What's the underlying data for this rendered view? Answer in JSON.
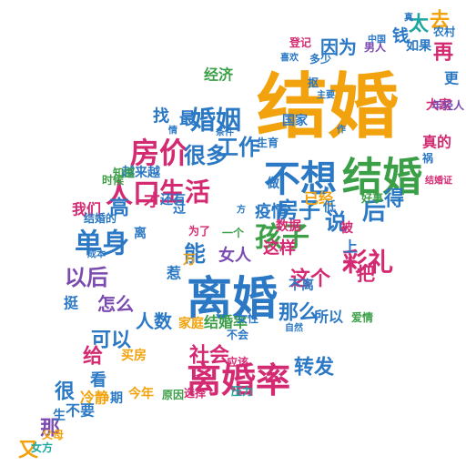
{
  "palette": {
    "orange": "#f2a20c",
    "blue": "#2b78c5",
    "green": "#3a9f46",
    "magenta": "#d42a72",
    "teal": "#1ea6a0",
    "purple": "#7b4bb0",
    "yellow": "#e3b51a",
    "background": "#ffffff"
  },
  "words": [
    {
      "t": "结婚",
      "c": "orange",
      "r": 0
    },
    {
      "t": "不想",
      "c": "blue",
      "r": 0
    },
    {
      "t": "结婚",
      "c": "green",
      "r": 0
    },
    {
      "t": "离婚",
      "c": "blue",
      "r": 0
    },
    {
      "t": "离婚率",
      "c": "magenta",
      "r": 0
    },
    {
      "t": "房价",
      "c": "magenta",
      "r": 0
    },
    {
      "t": "孩子",
      "c": "green",
      "r": 0
    },
    {
      "t": "婚姻",
      "c": "blue",
      "r": 0
    },
    {
      "t": "单身",
      "c": "blue",
      "r": 0
    },
    {
      "t": "人口",
      "c": "magenta",
      "r": 0
    },
    {
      "t": "彩礼",
      "c": "magenta",
      "r": 0
    },
    {
      "t": "生活",
      "c": "magenta",
      "r": 0
    },
    {
      "t": "工作",
      "c": "blue",
      "r": 0
    },
    {
      "t": "很多",
      "c": "blue",
      "r": 0
    },
    {
      "t": "房子",
      "c": "blue",
      "r": 0
    },
    {
      "t": "以后",
      "c": "purple",
      "r": 0
    },
    {
      "t": "可以",
      "c": "blue",
      "r": 0
    },
    {
      "t": "那么",
      "c": "blue",
      "r": 0
    },
    {
      "t": "这个",
      "c": "magenta",
      "r": 0
    },
    {
      "t": "社会",
      "c": "magenta",
      "r": 0
    },
    {
      "t": "转发",
      "c": "blue",
      "r": 0
    },
    {
      "t": "因为",
      "c": "blue",
      "r": 0
    },
    {
      "t": "说",
      "c": "blue",
      "r": 0
    },
    {
      "t": "后",
      "c": "blue",
      "r": 0
    },
    {
      "t": "再",
      "c": "magenta",
      "r": 0
    },
    {
      "t": "太",
      "c": "teal",
      "r": 0
    },
    {
      "t": "去",
      "c": "orange",
      "r": 0
    },
    {
      "t": "高",
      "c": "blue",
      "r": 0
    },
    {
      "t": "能",
      "c": "blue",
      "r": 0
    },
    {
      "t": "得",
      "c": "blue",
      "r": 0
    },
    {
      "t": "给",
      "c": "magenta",
      "r": 0
    },
    {
      "t": "那",
      "c": "purple",
      "r": 0
    },
    {
      "t": "很",
      "c": "blue",
      "r": 0
    },
    {
      "t": "把",
      "c": "magenta",
      "r": 0
    },
    {
      "t": "怎么",
      "c": "purple",
      "r": 0
    },
    {
      "t": "人数",
      "c": "blue",
      "r": 0
    },
    {
      "t": "疫情",
      "c": "blue",
      "r": 0
    },
    {
      "t": "女人",
      "c": "purple",
      "r": 0
    },
    {
      "t": "这样",
      "c": "magenta",
      "r": 0
    },
    {
      "t": "所以",
      "c": "blue",
      "r": 0
    },
    {
      "t": "结婚率",
      "c": "green",
      "r": 0
    },
    {
      "t": "看",
      "c": "blue",
      "r": 0
    },
    {
      "t": "冷静",
      "c": "orange",
      "r": 0
    },
    {
      "t": "期",
      "c": "blue",
      "r": 0
    },
    {
      "t": "今年",
      "c": "orange",
      "r": 0
    },
    {
      "t": "原因",
      "c": "green",
      "r": 0
    },
    {
      "t": "选择",
      "c": "magenta",
      "r": 0
    },
    {
      "t": "压力",
      "c": "teal",
      "r": 0
    },
    {
      "t": "不要",
      "c": "blue",
      "r": 0
    },
    {
      "t": "数据",
      "c": "magenta",
      "r": 0
    },
    {
      "t": "已经",
      "c": "orange",
      "r": 0
    },
    {
      "t": "好事",
      "c": "green",
      "r": 0
    },
    {
      "t": "登记",
      "c": "magenta",
      "r": 0
    },
    {
      "t": "男人",
      "c": "purple",
      "r": 0
    },
    {
      "t": "钱",
      "c": "blue",
      "r": 0
    },
    {
      "t": "如果",
      "c": "blue",
      "r": 0
    },
    {
      "t": "经济",
      "c": "green",
      "r": 0
    },
    {
      "t": "多少",
      "c": "blue",
      "r": 0
    },
    {
      "t": "更",
      "c": "blue",
      "r": 0
    },
    {
      "t": "大家",
      "c": "magenta",
      "r": 0
    },
    {
      "t": "真的",
      "c": "magenta",
      "r": 0
    },
    {
      "t": "国家",
      "c": "blue",
      "r": 0
    },
    {
      "t": "祸",
      "c": "blue",
      "r": 0
    },
    {
      "t": "找",
      "c": "blue",
      "r": 0
    },
    {
      "t": "最",
      "c": "blue",
      "r": 0
    },
    {
      "t": "越来越",
      "c": "blue",
      "r": 0
    },
    {
      "t": "还有",
      "c": "blue",
      "r": 0
    },
    {
      "t": "我们",
      "c": "magenta",
      "r": 0
    },
    {
      "t": "才",
      "c": "magenta",
      "r": 0
    },
    {
      "t": "过",
      "c": "blue",
      "r": 0
    },
    {
      "t": "离",
      "c": "blue",
      "r": 0
    },
    {
      "t": "万",
      "c": "orange",
      "r": 0
    },
    {
      "t": "买房",
      "c": "orange",
      "r": 0
    },
    {
      "t": "家庭",
      "c": "orange",
      "r": 0
    },
    {
      "t": "女性",
      "c": "blue",
      "r": 0
    },
    {
      "t": "应该",
      "c": "magenta",
      "r": 0
    },
    {
      "t": "不会",
      "c": "blue",
      "r": 0
    },
    {
      "t": "不离",
      "c": "blue",
      "r": 0
    },
    {
      "t": "上",
      "c": "blue",
      "r": 0
    },
    {
      "t": "大",
      "c": "magenta",
      "r": 0
    },
    {
      "t": "被",
      "c": "magenta",
      "r": 0
    },
    {
      "t": "低",
      "c": "blue",
      "r": 0
    },
    {
      "t": "做",
      "c": "blue",
      "r": 0
    },
    {
      "t": "生育",
      "c": "blue",
      "r": 0
    },
    {
      "t": "挺",
      "c": "blue",
      "r": 0
    },
    {
      "t": "生",
      "c": "blue",
      "r": 0
    },
    {
      "t": "又",
      "c": "orange",
      "r": 0
    },
    {
      "t": "知道",
      "c": "green",
      "r": 0
    },
    {
      "t": "时候",
      "c": "green",
      "r": 0
    },
    {
      "t": "结婚的",
      "c": "blue",
      "r": 0
    },
    {
      "t": "抠",
      "c": "blue",
      "r": 0
    },
    {
      "t": "为了",
      "c": "magenta",
      "r": 0
    },
    {
      "t": "惹",
      "c": "blue",
      "r": 0
    },
    {
      "t": "成本",
      "c": "blue",
      "r": 0
    },
    {
      "t": "父母",
      "c": "orange",
      "r": 0
    },
    {
      "t": "女方",
      "c": "teal",
      "r": 0
    },
    {
      "t": "喜欢",
      "c": "blue",
      "r": 0
    },
    {
      "t": "爱情",
      "c": "green",
      "r": 0
    },
    {
      "t": "自然",
      "c": "blue",
      "r": 0
    },
    {
      "t": "结婚证",
      "c": "magenta",
      "r": 0
    },
    {
      "t": "真",
      "c": "blue",
      "r": 0
    },
    {
      "t": "中国",
      "c": "blue",
      "r": 0
    },
    {
      "t": "主要",
      "c": "blue",
      "r": 0
    },
    {
      "t": "作",
      "c": "blue",
      "r": 0
    },
    {
      "t": "情",
      "c": "blue",
      "r": 0
    },
    {
      "t": "农村",
      "c": "blue",
      "r": 0
    },
    {
      "t": "年轻人",
      "c": "purple",
      "r": 0
    },
    {
      "t": "方",
      "c": "blue",
      "r": 0
    },
    {
      "t": "条件",
      "c": "blue",
      "r": 0
    },
    {
      "t": "一个",
      "c": "green",
      "r": 0
    }
  ]
}
